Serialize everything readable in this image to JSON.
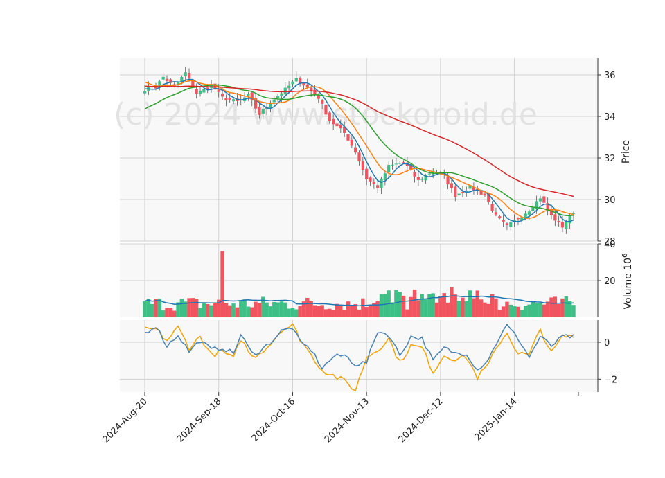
{
  "watermark": "(c) 2024 www.stockoroid.de",
  "colors": {
    "up": "#3dbf85",
    "down": "#f0545f",
    "ma_fast": "#1f77b4",
    "ma_mid": "#ff7f0e",
    "ma_slow": "#2ca02c",
    "ma_long": "#d62728",
    "vol_ma": "#1f77b4",
    "osc_a": "#4682b4",
    "osc_b": "#f5a300",
    "panel_bg": "#f8f8f8",
    "grid": "#d0d0d0"
  },
  "chart_data": {
    "type": "candlestick",
    "price_panel": {
      "ylabel": "Price",
      "ylim": [
        28,
        36.8
      ],
      "yticks": [
        28,
        30,
        32,
        34,
        36
      ],
      "anchors_close": [
        [
          0,
          35.3
        ],
        [
          3,
          35.4
        ],
        [
          5,
          35.9
        ],
        [
          8,
          35.4
        ],
        [
          11,
          36.1
        ],
        [
          14,
          35.1
        ],
        [
          18,
          35.5
        ],
        [
          21,
          34.9
        ],
        [
          25,
          34.7
        ],
        [
          28,
          35.0
        ],
        [
          31,
          34.1
        ],
        [
          34,
          34.7
        ],
        [
          38,
          35.3
        ],
        [
          41,
          35.8
        ],
        [
          44,
          35.4
        ],
        [
          47,
          34.9
        ],
        [
          50,
          33.8
        ],
        [
          54,
          33.2
        ],
        [
          57,
          32.3
        ],
        [
          60,
          31.0
        ],
        [
          63,
          30.6
        ],
        [
          66,
          31.6
        ],
        [
          70,
          31.8
        ],
        [
          74,
          30.9
        ],
        [
          78,
          31.4
        ],
        [
          81,
          31.1
        ],
        [
          84,
          30.2
        ],
        [
          88,
          30.6
        ],
        [
          92,
          30.2
        ],
        [
          95,
          29.2
        ],
        [
          98,
          28.7
        ],
        [
          101,
          29.1
        ],
        [
          104,
          29.5
        ],
        [
          107,
          30.1
        ],
        [
          110,
          29.2
        ],
        [
          113,
          28.7
        ],
        [
          116,
          29.4
        ]
      ]
    },
    "volume_panel": {
      "ylabel": "Volume 10^6",
      "ylim": [
        0,
        40
      ],
      "yticks": [
        20,
        40
      ],
      "spike": {
        "index": 21,
        "value": 36
      },
      "base_volume": 7.5
    },
    "indicator_panel": {
      "ylim": [
        -2.7,
        1.2
      ],
      "yticks": [
        -2,
        0
      ],
      "series_a": [
        [
          0,
          0.5
        ],
        [
          3,
          0.9
        ],
        [
          6,
          -0.2
        ],
        [
          9,
          0.4
        ],
        [
          12,
          -0.5
        ],
        [
          15,
          0.1
        ],
        [
          18,
          -0.4
        ],
        [
          21,
          -0.3
        ],
        [
          24,
          -0.6
        ],
        [
          26,
          0.4
        ],
        [
          29,
          -0.6
        ],
        [
          31,
          -0.5
        ],
        [
          34,
          0.0
        ],
        [
          37,
          0.6
        ],
        [
          40,
          0.8
        ],
        [
          42,
          0.0
        ],
        [
          45,
          -0.4
        ],
        [
          48,
          -1.4
        ],
        [
          51,
          -0.8
        ],
        [
          54,
          -0.7
        ],
        [
          57,
          -1.2
        ],
        [
          60,
          -1.1
        ],
        [
          63,
          0.6
        ],
        [
          66,
          0.4
        ],
        [
          69,
          -0.7
        ],
        [
          72,
          0.3
        ],
        [
          75,
          0.2
        ],
        [
          78,
          -1.0
        ],
        [
          81,
          -0.3
        ],
        [
          84,
          -0.6
        ],
        [
          87,
          -0.6
        ],
        [
          90,
          -1.5
        ],
        [
          93,
          -0.9
        ],
        [
          96,
          0.3
        ],
        [
          98,
          0.9
        ],
        [
          101,
          0.2
        ],
        [
          104,
          -0.8
        ],
        [
          107,
          0.3
        ],
        [
          110,
          -0.2
        ],
        [
          113,
          0.3
        ]
      ],
      "series_b": [
        [
          0,
          0.7
        ],
        [
          3,
          0.7
        ],
        [
          6,
          0.1
        ],
        [
          9,
          0.8
        ],
        [
          12,
          -0.3
        ],
        [
          15,
          0.3
        ],
        [
          18,
          -0.7
        ],
        [
          21,
          -0.5
        ],
        [
          24,
          -0.9
        ],
        [
          26,
          0.2
        ],
        [
          29,
          -0.8
        ],
        [
          31,
          -0.6
        ],
        [
          34,
          -0.1
        ],
        [
          37,
          0.7
        ],
        [
          40,
          0.9
        ],
        [
          42,
          0.2
        ],
        [
          45,
          -0.7
        ],
        [
          48,
          -1.5
        ],
        [
          51,
          -1.8
        ],
        [
          54,
          -2.1
        ],
        [
          57,
          -2.6
        ],
        [
          60,
          -0.8
        ],
        [
          63,
          -0.4
        ],
        [
          66,
          0.2
        ],
        [
          69,
          -1.1
        ],
        [
          72,
          -0.2
        ],
        [
          75,
          -0.3
        ],
        [
          78,
          -1.6
        ],
        [
          81,
          -0.7
        ],
        [
          84,
          -0.9
        ],
        [
          87,
          -0.8
        ],
        [
          90,
          -1.9
        ],
        [
          93,
          -1.2
        ],
        [
          96,
          0.0
        ],
        [
          98,
          0.5
        ],
        [
          101,
          -0.6
        ],
        [
          104,
          -0.7
        ],
        [
          107,
          0.7
        ],
        [
          110,
          -0.6
        ],
        [
          113,
          0.3
        ]
      ]
    },
    "x_axis": {
      "count": 117,
      "tick_labels": [
        "2024-Aug-20",
        "2024-Sep-18",
        "2024-Oct-16",
        "2024-Nov-13",
        "2024-Dec-12",
        "2025-Jan-14"
      ],
      "tick_indices": [
        0,
        20,
        40,
        60,
        80,
        100
      ]
    },
    "moving_average_periods": [
      5,
      10,
      20,
      50
    ]
  }
}
